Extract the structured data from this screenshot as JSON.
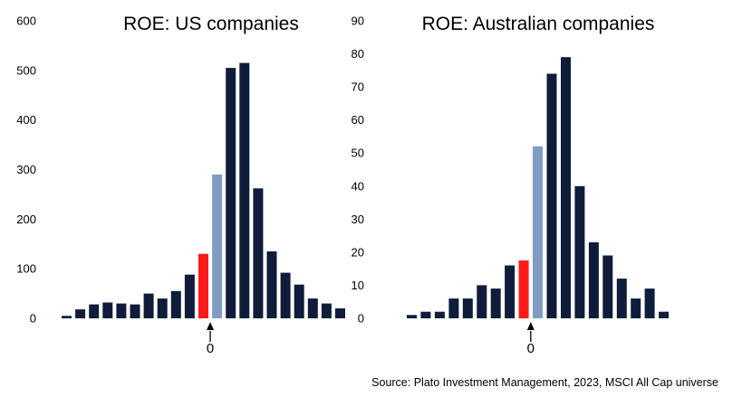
{
  "colors": {
    "bar": "#0f1d3a",
    "highlight_zero": "#ff1a1a",
    "highlight_next": "#7f9cc2"
  },
  "chart_data": [
    {
      "type": "bar",
      "title": "ROE: US companies",
      "xlabel": "",
      "ylabel": "",
      "ylim": [
        0,
        600
      ],
      "yticks": [
        0,
        100,
        200,
        300,
        400,
        500,
        600
      ],
      "zero_marker_label": "0",
      "zero_bar_index": 10,
      "values": [
        5,
        18,
        28,
        32,
        30,
        28,
        50,
        40,
        55,
        88,
        130,
        290,
        505,
        515,
        262,
        135,
        92,
        68,
        40,
        30,
        20
      ]
    },
    {
      "type": "bar",
      "title": "ROE: Australian companies",
      "xlabel": "",
      "ylabel": "",
      "ylim": [
        0,
        90
      ],
      "yticks": [
        0,
        10,
        20,
        30,
        40,
        50,
        60,
        70,
        80,
        90
      ],
      "zero_marker_label": "0",
      "zero_bar_index": 8,
      "values": [
        1,
        2,
        2,
        6,
        6,
        10,
        9,
        16,
        17.5,
        52,
        74,
        79,
        40,
        23,
        19,
        12,
        6,
        9,
        2
      ]
    }
  ],
  "source": "Source: Plato Investment Management, 2023, MSCI All Cap universe"
}
